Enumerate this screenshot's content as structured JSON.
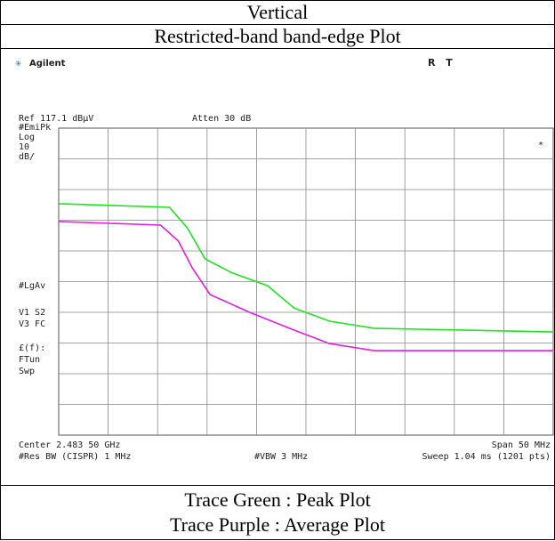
{
  "header": {
    "title": "Vertical",
    "subtitle": "Restricted-band band-edge Plot"
  },
  "screen": {
    "brand": "Agilent",
    "status": "R T",
    "ref": "Ref 117.1 dBµV",
    "atten": "Atten 30 dB",
    "left_labels": [
      "#EmiPk",
      "Log",
      "10",
      "dB/",
      "#LgAv",
      "V1  S2",
      "V3  FC",
      "£(f):",
      "FTun",
      "Swp"
    ],
    "marker": "*",
    "center": "Center 2.483 50 GHz",
    "span": "Span 50 MHz",
    "rbw": "#Res BW (CISPR) 1 MHz",
    "vbw": "#VBW 3 MHz",
    "sweep": "Sweep 1.04 ms (1201 pts)"
  },
  "plot": {
    "xlim": [
      2.4585,
      2.5085
    ],
    "ylim": [
      17.1,
      117.1
    ],
    "traces": [
      {
        "color": "#22e022",
        "x": [
          2.4585,
          2.4697,
          2.4715,
          2.4733,
          2.476,
          2.4796,
          2.4823,
          2.4859,
          2.4904,
          2.5085
        ],
        "values": [
          92.5,
          91.3,
          84.6,
          74.5,
          70,
          65.8,
          58.5,
          54.2,
          51.9,
          50.7
        ]
      },
      {
        "color": "#e020e0",
        "x": [
          2.4585,
          2.4688,
          2.4706,
          2.472,
          2.4738,
          2.4778,
          2.4823,
          2.4859,
          2.4904,
          2.5085
        ],
        "values": [
          86.7,
          85.5,
          80.3,
          71.6,
          62.9,
          57.1,
          51.3,
          46.9,
          44.6,
          44.6
        ]
      }
    ]
  },
  "footer": {
    "line1": "Trace Green : Peak Plot",
    "line2": "Trace Purple : Average Plot"
  }
}
